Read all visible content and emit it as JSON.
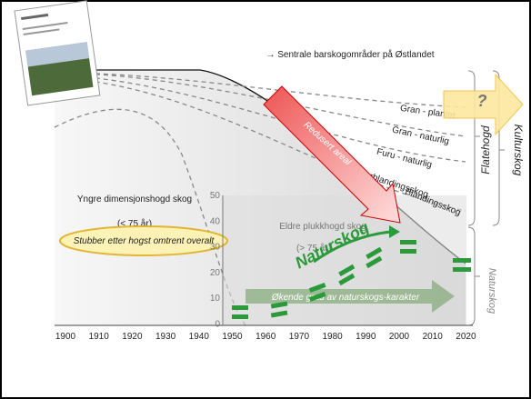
{
  "header": {
    "title": "→ Sentrale barskogområder på Østlandet"
  },
  "curve_labels": [
    "Gran - plantet",
    "Gran - naturlig",
    "Furu - naturlig",
    "Barblandingsskog",
    "Blandingsskog"
  ],
  "arrow_label": "Redusert areal",
  "regions": {
    "young": {
      "label": "Yngre dimensjonshogd skog",
      "age": "(< 75 år)"
    },
    "old": {
      "label": "Eldre plukkhogd skog",
      "age": "(> 75 år)"
    }
  },
  "stumps": "Stubber etter hogst omtrent overalt",
  "natural_forest": "Naturskog",
  "trend": "Økende grad av naturskogs-karakter",
  "brackets": {
    "clearcut": "Flatehogd",
    "culture": "Kulturskog",
    "natural": "Naturskog"
  },
  "question": "?",
  "x_axis": {
    "ticks": [
      "1900",
      "1910",
      "1920",
      "1930",
      "1940",
      "1950",
      "1960",
      "1970",
      "1980",
      "1990",
      "2000",
      "2010",
      "2020"
    ]
  },
  "y_axis": {
    "ticks": [
      "50",
      "40",
      "30",
      "20",
      "10",
      "0"
    ]
  }
}
